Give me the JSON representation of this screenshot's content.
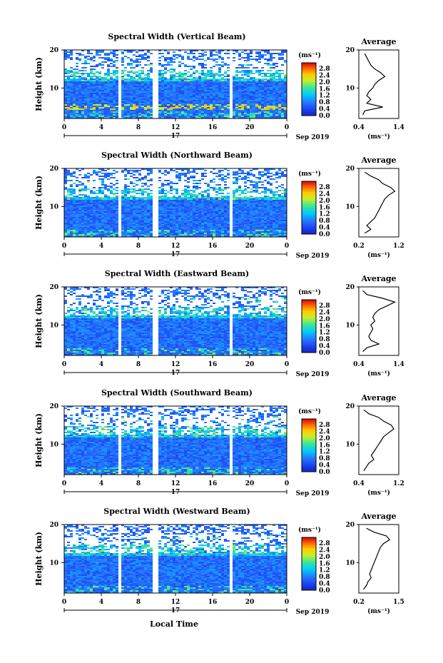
{
  "figure": {
    "x_axis_label": "Local Time",
    "date_label": "Sep 2019",
    "day_label": "17",
    "height_axis_label": "Height (km)",
    "height_ticks": [
      "20",
      "10"
    ],
    "time_ticks": [
      "0",
      "4",
      "8",
      "12",
      "16",
      "20",
      "0"
    ],
    "colorbar_unit": "(ms⁻¹)",
    "colorbar_ticks": [
      "2.8",
      "2.4",
      "2.0",
      "1.6",
      "1.2",
      "0.8",
      "0.4",
      "0.0"
    ],
    "average_title": "Average",
    "average_unit": "(ms⁻¹)"
  },
  "chart_data": [
    {
      "type": "heatmap",
      "title": "Spectral Width (Vertical Beam)",
      "xlabel": "Local Time",
      "ylabel": "Height (km)",
      "xlim": [
        0,
        24
      ],
      "ylim": [
        2,
        20
      ],
      "colorbar": {
        "unit": "ms-1",
        "range": [
          0.0,
          3.0
        ]
      },
      "data_gaps_hours": [
        [
          5.6,
          5.9
        ],
        [
          9.5,
          9.9
        ],
        [
          17.6,
          17.9
        ]
      ],
      "average_profile": {
        "xlim": [
          0.4,
          1.4
        ],
        "xticks": [
          "0.4",
          "1.4"
        ],
        "height": [
          3,
          4,
          5,
          6,
          7,
          8,
          9,
          10,
          11,
          12,
          13,
          14,
          15,
          16,
          17,
          18,
          19
        ],
        "value": [
          0.5,
          0.55,
          1.0,
          0.6,
          0.7,
          0.6,
          0.65,
          0.75,
          0.8,
          0.9,
          1.05,
          0.95,
          0.8,
          0.7,
          0.65,
          0.6,
          0.55
        ]
      }
    },
    {
      "type": "heatmap",
      "title": "Spectral Width (Northward Beam)",
      "xlabel": "Local Time",
      "ylabel": "Height (km)",
      "xlim": [
        0,
        24
      ],
      "ylim": [
        2,
        20
      ],
      "colorbar": {
        "unit": "ms-1",
        "range": [
          0.0,
          3.0
        ]
      },
      "data_gaps_hours": [
        [
          5.6,
          5.9
        ],
        [
          9.5,
          9.9
        ],
        [
          17.6,
          17.9
        ]
      ],
      "average_profile": {
        "xlim": [
          0.2,
          1.2
        ],
        "xticks": [
          "0.2",
          "1.2"
        ],
        "height": [
          3,
          4,
          5,
          6,
          7,
          8,
          9,
          10,
          11,
          12,
          13,
          14,
          15,
          16,
          17,
          18,
          19
        ],
        "value": [
          0.35,
          0.5,
          0.4,
          0.5,
          0.6,
          0.65,
          0.7,
          0.75,
          0.8,
          0.85,
          0.95,
          1.1,
          1.0,
          0.8,
          0.7,
          0.5,
          0.35
        ]
      }
    },
    {
      "type": "heatmap",
      "title": "Spectral Width (Eastward Beam)",
      "xlabel": "Local Time",
      "ylabel": "Height (km)",
      "xlim": [
        0,
        24
      ],
      "ylim": [
        2,
        20
      ],
      "colorbar": {
        "unit": "ms-1",
        "range": [
          0.0,
          3.0
        ]
      },
      "data_gaps_hours": [
        [
          5.6,
          5.9
        ],
        [
          9.5,
          9.9
        ],
        [
          17.6,
          17.9
        ]
      ],
      "average_profile": {
        "xlim": [
          0.4,
          1.4
        ],
        "xticks": [
          "0.4",
          "1.4"
        ],
        "height": [
          3,
          4,
          5,
          6,
          7,
          8,
          9,
          10,
          11,
          12,
          13,
          14,
          15,
          16,
          17,
          18,
          19
        ],
        "value": [
          0.5,
          0.6,
          0.9,
          0.7,
          0.65,
          0.7,
          0.75,
          0.7,
          0.8,
          0.75,
          0.8,
          0.9,
          1.1,
          1.3,
          1.0,
          0.6,
          0.5
        ]
      }
    },
    {
      "type": "heatmap",
      "title": "Spectral Width (Southward Beam)",
      "xlabel": "Local Time",
      "ylabel": "Height (km)",
      "xlim": [
        0,
        24
      ],
      "ylim": [
        2,
        20
      ],
      "colorbar": {
        "unit": "ms-1",
        "range": [
          0.0,
          3.0
        ]
      },
      "data_gaps_hours": [
        [
          5.6,
          5.9
        ],
        [
          9.5,
          9.9
        ],
        [
          17.6,
          17.9
        ]
      ],
      "average_profile": {
        "xlim": [
          0.4,
          1.2
        ],
        "xticks": [
          "0.4",
          "1.2"
        ],
        "height": [
          3,
          4,
          5,
          6,
          7,
          8,
          9,
          10,
          11,
          12,
          13,
          14,
          15,
          16,
          17,
          18,
          19
        ],
        "value": [
          0.5,
          0.55,
          0.6,
          0.7,
          0.65,
          0.7,
          0.75,
          0.8,
          0.85,
          0.9,
          1.0,
          1.1,
          1.05,
          0.9,
          0.8,
          0.6,
          0.5
        ]
      }
    },
    {
      "type": "heatmap",
      "title": "Spectral Width (Westward Beam)",
      "xlabel": "Local Time",
      "ylabel": "Height (km)",
      "xlim": [
        0,
        24
      ],
      "ylim": [
        2,
        20
      ],
      "colorbar": {
        "unit": "ms-1",
        "range": [
          0.0,
          3.0
        ]
      },
      "data_gaps_hours": [
        [
          5.6,
          5.9
        ],
        [
          9.5,
          9.9
        ],
        [
          17.6,
          17.9
        ]
      ],
      "average_profile": {
        "xlim": [
          0.2,
          1.5
        ],
        "xticks": [
          "0.2",
          "1.5"
        ],
        "height": [
          3,
          4,
          5,
          6,
          7,
          8,
          9,
          10,
          11,
          12,
          13,
          14,
          15,
          16,
          17,
          18,
          19
        ],
        "value": [
          0.35,
          0.45,
          0.5,
          0.6,
          0.55,
          0.6,
          0.65,
          0.7,
          0.75,
          0.8,
          0.85,
          0.9,
          1.0,
          1.2,
          1.1,
          0.7,
          0.45
        ]
      }
    }
  ]
}
